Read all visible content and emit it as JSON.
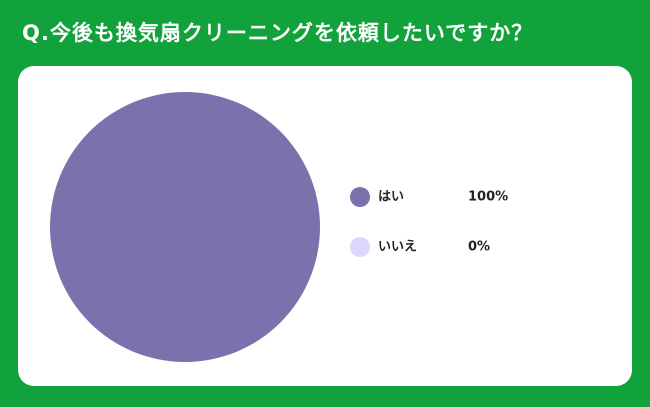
{
  "chart_data": {
    "type": "pie",
    "title": "Q.今後も換気扇クリーニングを依頼したいですか？",
    "categories": [
      "はい",
      "いいえ"
    ],
    "values": [
      100,
      0
    ],
    "value_labels": [
      "100%",
      "0%"
    ],
    "colors": [
      "#7a72ad",
      "#dcd8fb"
    ]
  }
}
